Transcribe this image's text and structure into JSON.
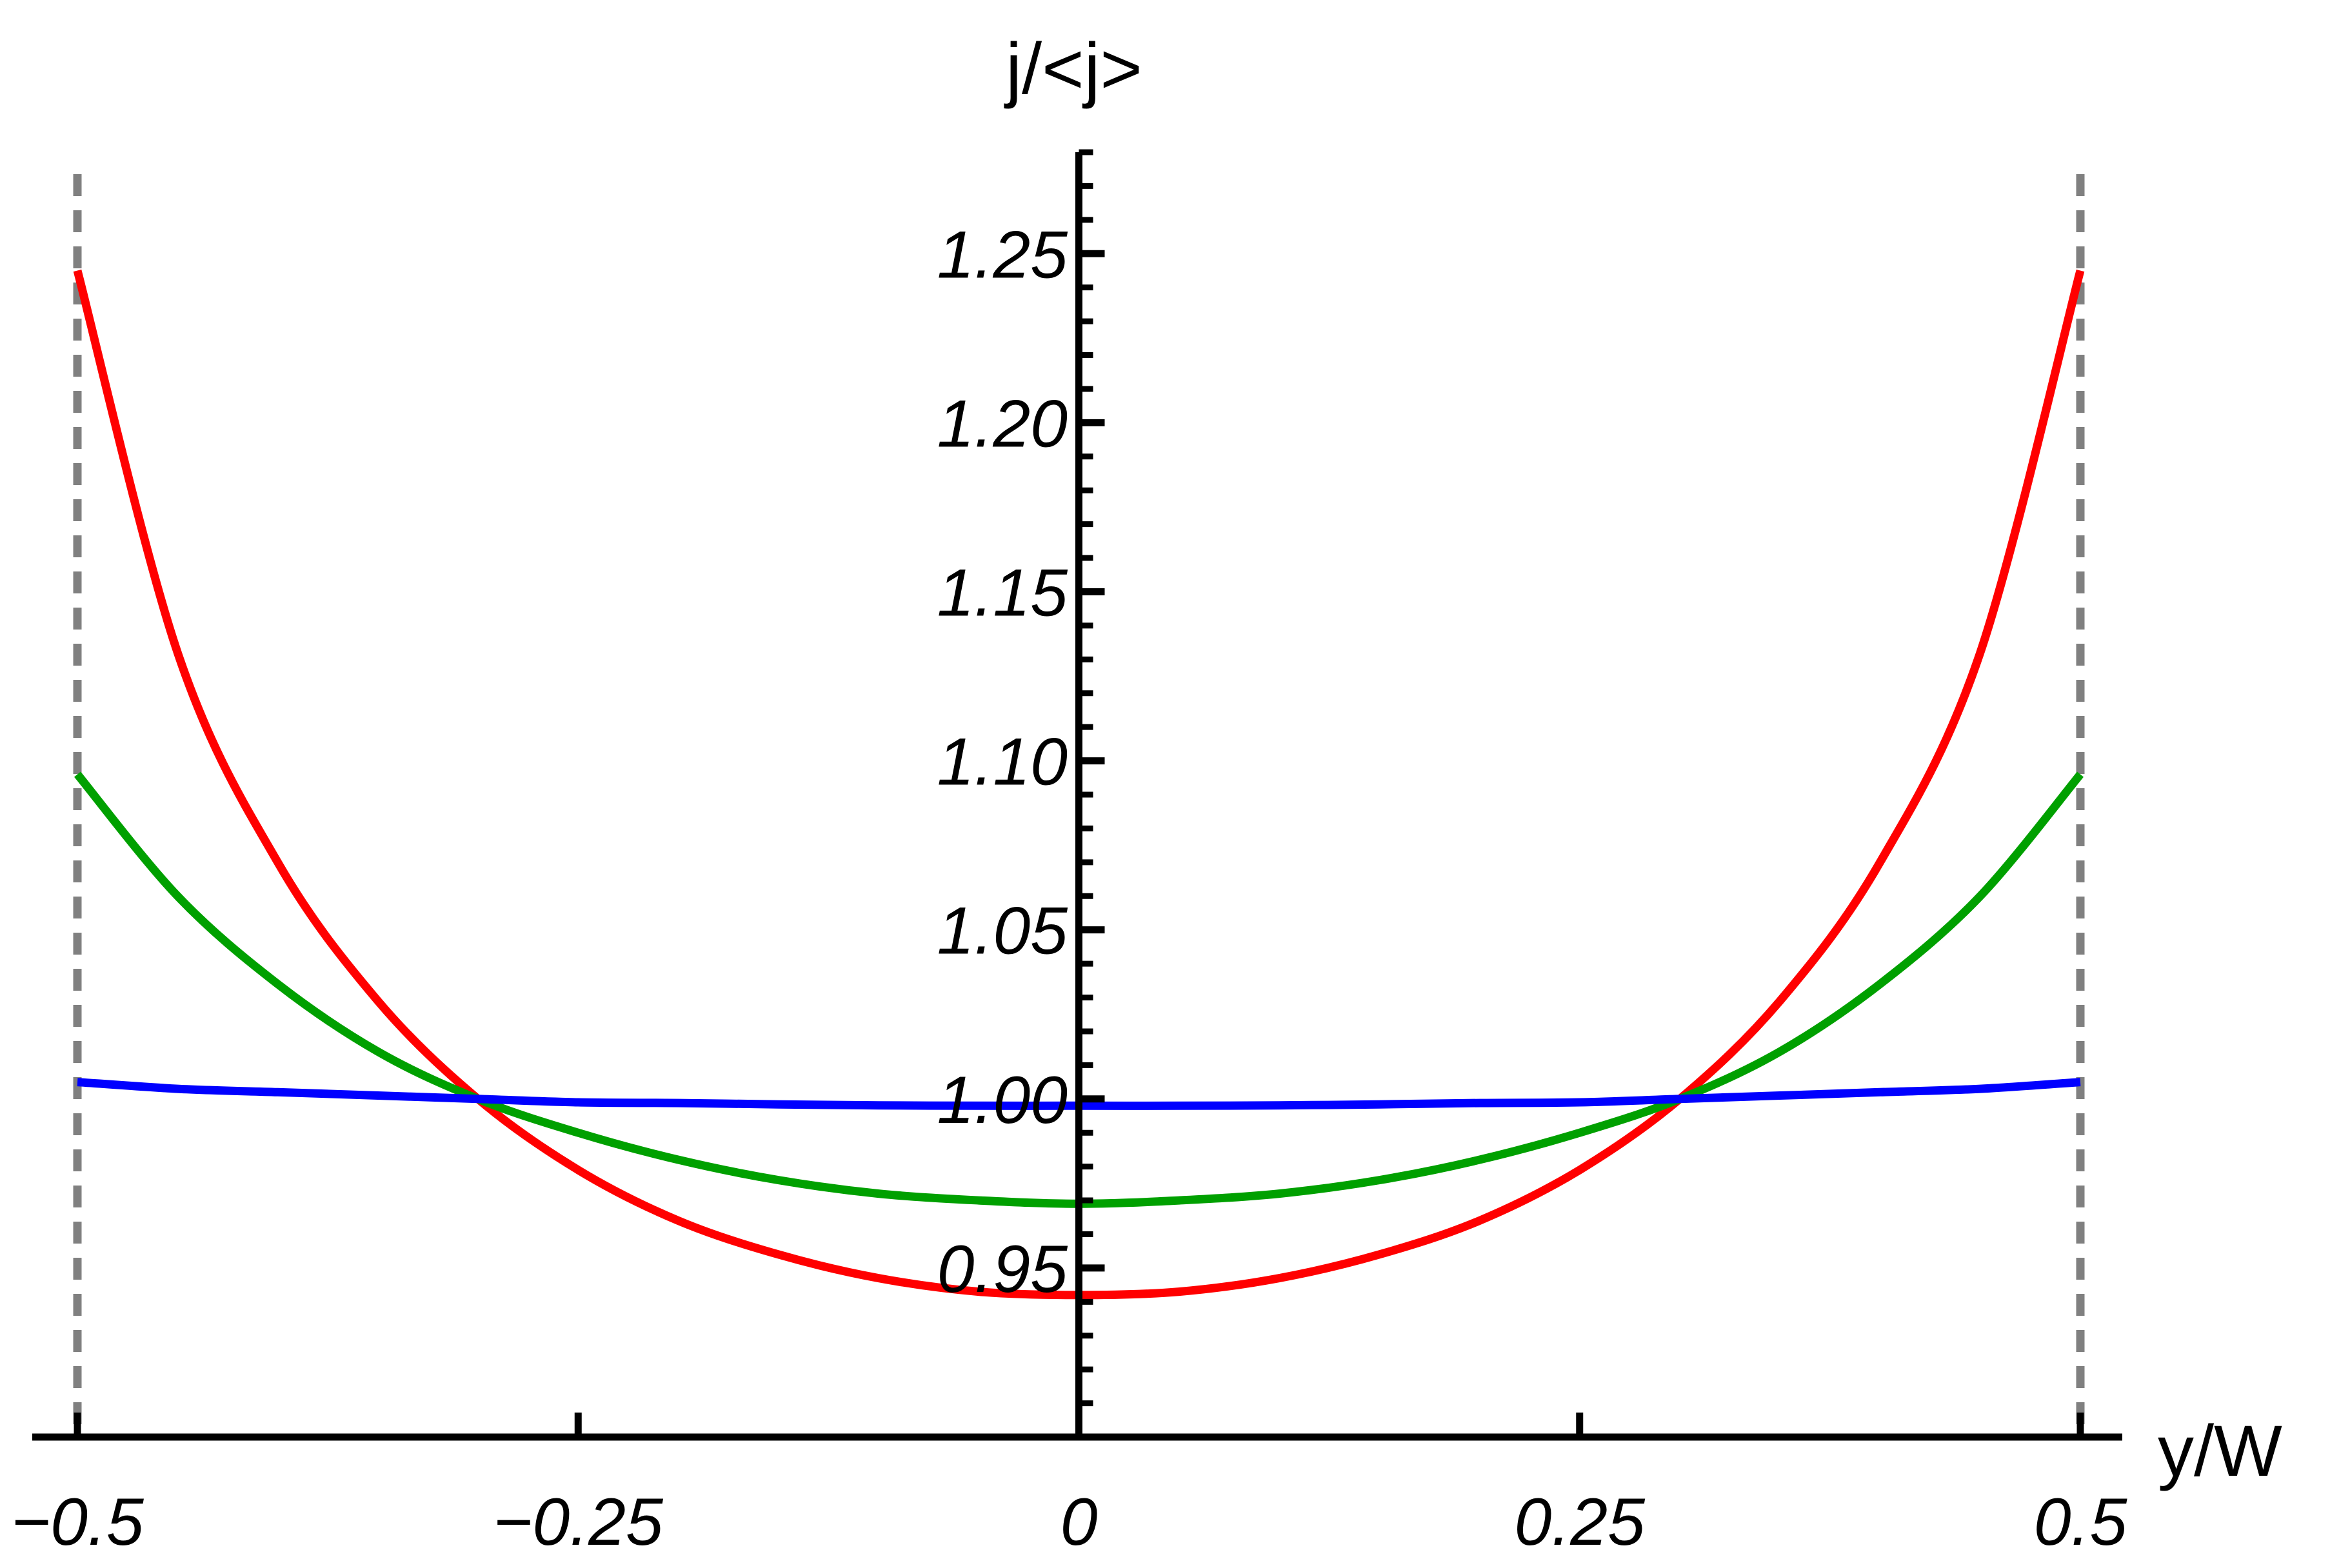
{
  "chart_data": {
    "type": "line",
    "xlabel": "y/W",
    "ylabel": "j/<j>",
    "xlim": [
      -0.5,
      0.5
    ],
    "ylim": [
      0.9,
      1.28
    ],
    "x_ticks": [
      -0.5,
      -0.25,
      0,
      0.25,
      0.5
    ],
    "x_tick_labels": [
      "−0.5",
      "−0.25",
      "0",
      "0.25",
      "0.5"
    ],
    "y_ticks": [
      0.95,
      1.0,
      1.05,
      1.1,
      1.15,
      1.2,
      1.25
    ],
    "y_tick_labels": [
      "0.95",
      "1.00",
      "1.05",
      "1.10",
      "1.15",
      "1.20",
      "1.25"
    ],
    "boundaries": [
      -0.5,
      0.5
    ],
    "boundary_color": "#808080",
    "x": [
      -0.5,
      -0.45,
      -0.4,
      -0.35,
      -0.3,
      -0.25,
      -0.2,
      -0.15,
      -0.1,
      -0.05,
      0,
      0.05,
      0.1,
      0.15,
      0.2,
      0.25,
      0.3,
      0.35,
      0.4,
      0.45,
      0.5
    ],
    "series": [
      {
        "color": "#ff0000",
        "values": [
          1.245,
          1.132,
          1.07,
          1.029,
          1.0,
          0.979,
          0.964,
          0.954,
          0.947,
          0.943,
          0.942,
          0.943,
          0.947,
          0.954,
          0.964,
          0.979,
          1.0,
          1.029,
          1.07,
          1.132,
          1.245
        ]
      },
      {
        "color": "#00a000",
        "values": [
          1.096,
          1.06,
          1.034,
          1.014,
          1.0,
          0.99,
          0.982,
          0.976,
          0.972,
          0.97,
          0.969,
          0.97,
          0.972,
          0.976,
          0.982,
          0.99,
          1.0,
          1.014,
          1.034,
          1.06,
          1.096
        ]
      },
      {
        "color": "#0000ff",
        "values": [
          1.005,
          1.003,
          1.002,
          1.001,
          1.0,
          0.999,
          0.9988,
          0.9984,
          0.9981,
          0.998,
          0.998,
          0.998,
          0.9981,
          0.9984,
          0.9988,
          0.999,
          1.0,
          1.001,
          1.002,
          1.003,
          1.005
        ]
      }
    ]
  }
}
